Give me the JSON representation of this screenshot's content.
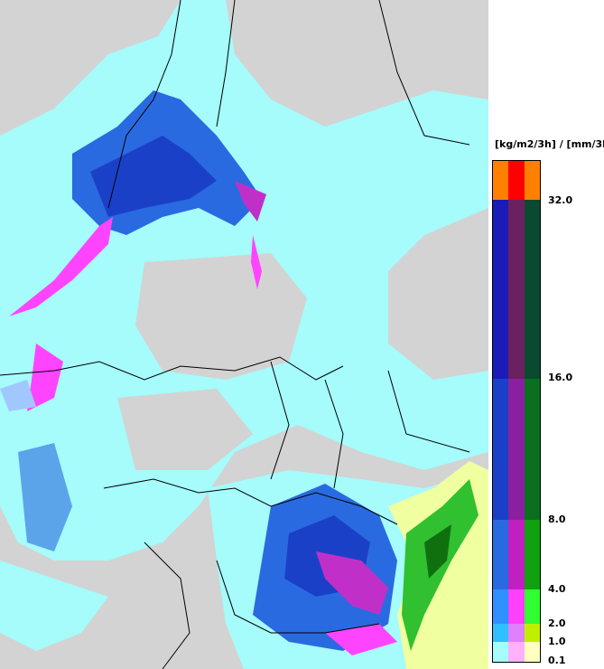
{
  "legend": {
    "unit": "[kg/m2/3h] / [mm/3h]",
    "levels": [
      "32.0",
      "16.0",
      "8.0",
      "4.0",
      "2.0",
      "1.0",
      "0.1"
    ]
  }
}
